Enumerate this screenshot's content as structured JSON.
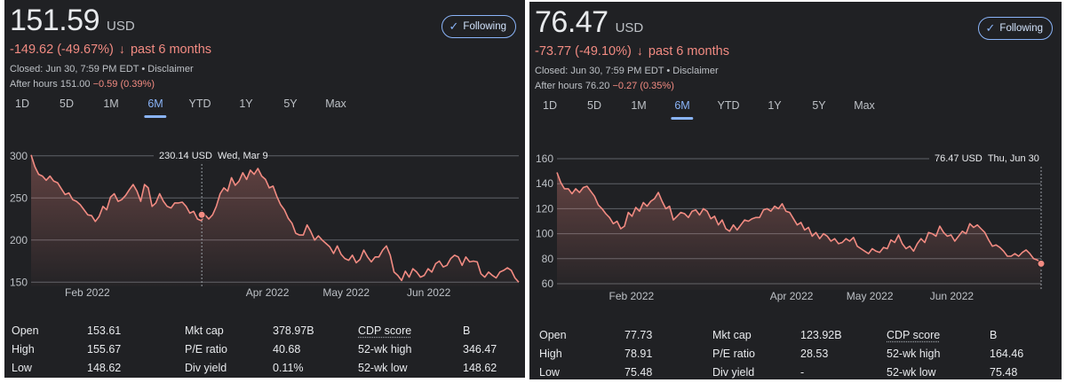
{
  "colors": {
    "background": "#202124",
    "line": "#f28b82",
    "accent": "#8ab4f8",
    "negative": "#f28b82",
    "text": "#e8eaed",
    "muted": "#bdc1c6",
    "grid": "#5f6368"
  },
  "panels": [
    {
      "price": "151.59",
      "currency": "USD",
      "change": "-149.62 (-49.67%)",
      "change_arrow": "arrow-down-icon",
      "change_period": "past 6 months",
      "closed": "Closed: Jun 30, 7:59 PM EDT • Disclaimer",
      "after_hours_label": "After hours 151.00",
      "after_hours_change": "−0.59 (0.39%)",
      "follow_label": "Following",
      "ranges": [
        "1D",
        "5D",
        "1M",
        "6M",
        "YTD",
        "1Y",
        "5Y",
        "Max"
      ],
      "active_range": "6M",
      "tooltip": {
        "price": "230.14 USD",
        "date": "Wed, Mar 9"
      },
      "stats": {
        "col1": [
          [
            "Open",
            "153.61"
          ],
          [
            "High",
            "155.67"
          ],
          [
            "Low",
            "148.62"
          ]
        ],
        "col2": [
          [
            "Mkt cap",
            "378.97B"
          ],
          [
            "P/E ratio",
            "40.68"
          ],
          [
            "Div yield",
            "0.11%"
          ]
        ],
        "col3": [
          [
            "CDP score",
            "B"
          ],
          [
            "52-wk high",
            "346.47"
          ],
          [
            "52-wk low",
            "148.62"
          ]
        ]
      },
      "chart_data": {
        "type": "area",
        "yticks": [
          150,
          200,
          250,
          300
        ],
        "ylim": [
          145,
          305
        ],
        "xlim": [
          0,
          130
        ],
        "xticks": [
          {
            "x": 15,
            "label": "Feb 2022"
          },
          {
            "x": 63,
            "label": "Apr 2022"
          },
          {
            "x": 84,
            "label": "May 2022"
          },
          {
            "x": 106,
            "label": "Jun 2022"
          }
        ],
        "marker_index": 46,
        "marker_x": 45.5,
        "values": [
          301,
          287,
          278,
          276,
          271,
          276,
          270,
          268,
          261,
          254,
          256,
          248,
          246,
          242,
          236,
          230,
          229,
          222,
          228,
          240,
          236,
          251,
          255,
          246,
          248,
          253,
          260,
          266,
          258,
          246,
          266,
          262,
          240,
          244,
          255,
          246,
          240,
          238,
          244,
          244,
          245,
          240,
          232,
          234,
          225,
          223,
          230,
          225,
          230,
          240,
          255,
          262,
          258,
          274,
          265,
          270,
          280,
          272,
          283,
          278,
          285,
          276,
          272,
          262,
          264,
          252,
          242,
          236,
          226,
          220,
          208,
          206,
          206,
          218,
          210,
          200,
          205,
          200,
          196,
          192,
          184,
          193,
          183,
          178,
          176,
          182,
          173,
          177,
          188,
          180,
          174,
          180,
          180,
          188,
          193,
          182,
          162,
          158,
          152,
          163,
          156,
          166,
          162,
          156,
          158,
          166,
          162,
          172,
          175,
          168,
          170,
          178,
          182,
          180,
          170,
          180,
          174,
          175,
          174,
          160,
          156,
          162,
          158,
          155,
          162,
          164,
          167,
          164,
          155,
          150
        ]
      }
    },
    {
      "price": "76.47",
      "currency": "USD",
      "change": "-73.77 (-49.10%)",
      "change_arrow": "arrow-down-icon",
      "change_period": "past 6 months",
      "closed": "Closed: Jun 30, 7:59 PM EDT • Disclaimer",
      "after_hours_label": "After hours 76.20",
      "after_hours_change": "−0.27 (0.35%)",
      "follow_label": "Following",
      "ranges": [
        "1D",
        "5D",
        "1M",
        "6M",
        "YTD",
        "1Y",
        "5Y",
        "Max"
      ],
      "active_range": "6M",
      "tooltip": {
        "price": "76.47 USD",
        "date": "Thu, Jun 30"
      },
      "stats": {
        "col1": [
          [
            "Open",
            "77.73"
          ],
          [
            "High",
            "78.91"
          ],
          [
            "Low",
            "75.48"
          ]
        ],
        "col2": [
          [
            "Mkt cap",
            "123.92B"
          ],
          [
            "P/E ratio",
            "28.53"
          ],
          [
            "Div yield",
            "-"
          ]
        ],
        "col3": [
          [
            "CDP score",
            "B"
          ],
          [
            "52-wk high",
            "164.46"
          ],
          [
            "52-wk low",
            "75.48"
          ]
        ]
      },
      "chart_data": {
        "type": "area",
        "yticks": [
          60,
          80,
          100,
          120,
          140,
          160
        ],
        "ylim": [
          55,
          165
        ],
        "xlim": [
          0,
          130
        ],
        "xticks": [
          {
            "x": 20,
            "label": "Feb 2022"
          },
          {
            "x": 63,
            "label": "Apr 2022"
          },
          {
            "x": 84,
            "label": "May 2022"
          },
          {
            "x": 106,
            "label": "Jun 2022"
          }
        ],
        "marker_index": 129,
        "marker_x": 130,
        "values": [
          149,
          141,
          136,
          136,
          132,
          136,
          133,
          137,
          138,
          134,
          130,
          123,
          120,
          116,
          113,
          108,
          110,
          104,
          106,
          117,
          114,
          121,
          118,
          125,
          122,
          126,
          128,
          133,
          126,
          120,
          122,
          111,
          114,
          117,
          116,
          113,
          118,
          119,
          115,
          120,
          118,
          112,
          114,
          107,
          111,
          104,
          102,
          107,
          103,
          107,
          111,
          110,
          112,
          113,
          113,
          119,
          120,
          118,
          122,
          120,
          124,
          118,
          117,
          112,
          107,
          109,
          103,
          105,
          98,
          101,
          96,
          100,
          98,
          94,
          96,
          92,
          93,
          96,
          94,
          97,
          90,
          88,
          86,
          84,
          88,
          86,
          85,
          89,
          88,
          95,
          93,
          99,
          92,
          88,
          90,
          86,
          92,
          96,
          93,
          101,
          100,
          98,
          106,
          101,
          98,
          99,
          94,
          98,
          102,
          100,
          108,
          105,
          107,
          104,
          101,
          95,
          90,
          91,
          89,
          86,
          82,
          82,
          84,
          82,
          85,
          87,
          84,
          80,
          79,
          76
        ]
      }
    }
  ]
}
